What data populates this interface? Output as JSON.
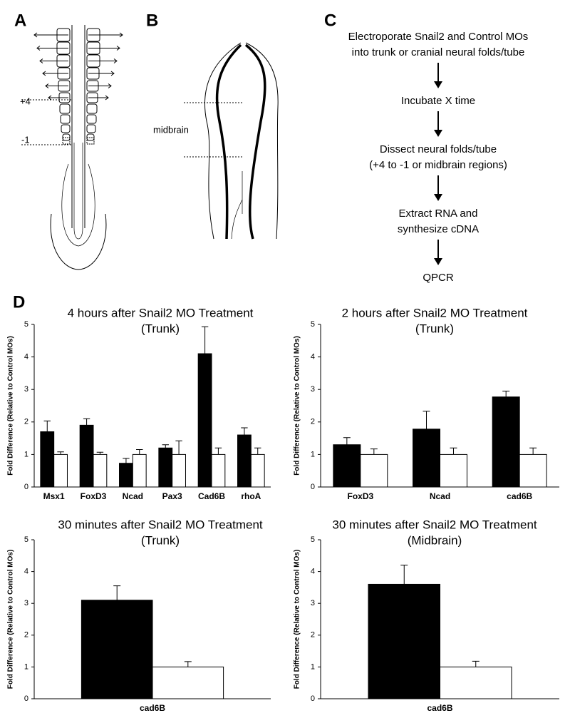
{
  "panels": {
    "a": {
      "label": "A",
      "upper_marker": "+4",
      "lower_marker": "-1"
    },
    "b": {
      "label": "B",
      "region": "midbrain"
    },
    "c": {
      "label": "C",
      "steps": [
        [
          "Electroporate Snail2 and Control MOs",
          "into trunk or cranial neural folds/tube"
        ],
        [
          "Incubate X time"
        ],
        [
          "Dissect neural folds/tube",
          "(+4 to -1 or midbrain regions)"
        ],
        [
          "Extract RNA and",
          "synthesize cDNA"
        ],
        [
          "QPCR"
        ]
      ]
    },
    "d": {
      "label": "D"
    }
  },
  "chart_data": [
    {
      "type": "bar",
      "title": "4 hours after Snail2 MO Treatment",
      "subtitle": "(Trunk)",
      "y_label": "Fold Difference (Relative to Control MOs)",
      "categories": [
        "Msx1",
        "FoxD3",
        "Ncad",
        "Pax3",
        "Cad6B",
        "rhoA"
      ],
      "series": [
        {
          "color": "#000000",
          "values": [
            1.7,
            1.9,
            0.73,
            1.2,
            4.1,
            1.6
          ],
          "errors": [
            0.33,
            0.2,
            0.15,
            0.1,
            0.83,
            0.22
          ]
        },
        {
          "color": "#ffffff",
          "values": [
            1.0,
            1.0,
            1.0,
            1.0,
            1.0,
            1.0
          ],
          "errors": [
            0.08,
            0.07,
            0.15,
            0.42,
            0.2,
            0.2
          ]
        }
      ],
      "ylim": [
        0,
        5
      ],
      "yticks": [
        0,
        1,
        2,
        3,
        4,
        5
      ]
    },
    {
      "type": "bar",
      "title": "2 hours after Snail2 MO Treatment",
      "subtitle": "(Trunk)",
      "y_label": "Fold Difference (Relative to Control MOs)",
      "categories": [
        "FoxD3",
        "Ncad",
        "cad6B"
      ],
      "series": [
        {
          "color": "#000000",
          "values": [
            1.3,
            1.78,
            2.77
          ],
          "errors": [
            0.22,
            0.55,
            0.18
          ]
        },
        {
          "color": "#ffffff",
          "values": [
            1.0,
            1.0,
            1.0
          ],
          "errors": [
            0.17,
            0.2,
            0.2
          ]
        }
      ],
      "ylim": [
        0,
        5
      ],
      "yticks": [
        0,
        1,
        2,
        3,
        4,
        5
      ]
    },
    {
      "type": "bar",
      "title": "30 minutes after Snail2 MO Treatment",
      "subtitle": "(Trunk)",
      "y_label": "Fold Difference (Relative to Control MOs)",
      "categories": [
        "cad6B"
      ],
      "series": [
        {
          "color": "#000000",
          "values": [
            3.1
          ],
          "errors": [
            0.45
          ]
        },
        {
          "color": "#ffffff",
          "values": [
            1.0
          ],
          "errors": [
            0.17
          ]
        }
      ],
      "ylim": [
        0,
        5
      ],
      "yticks": [
        0,
        1,
        2,
        3,
        4,
        5
      ]
    },
    {
      "type": "bar",
      "title": "30 minutes after Snail2 MO Treatment",
      "subtitle": "(Midbrain)",
      "y_label": "Fold Difference (Relative to Control MOs)",
      "categories": [
        "cad6B"
      ],
      "series": [
        {
          "color": "#000000",
          "values": [
            3.6
          ],
          "errors": [
            0.6
          ]
        },
        {
          "color": "#ffffff",
          "values": [
            1.0
          ],
          "errors": [
            0.18
          ]
        }
      ],
      "ylim": [
        0,
        5
      ],
      "yticks": [
        0,
        1,
        2,
        3,
        4,
        5
      ]
    }
  ]
}
